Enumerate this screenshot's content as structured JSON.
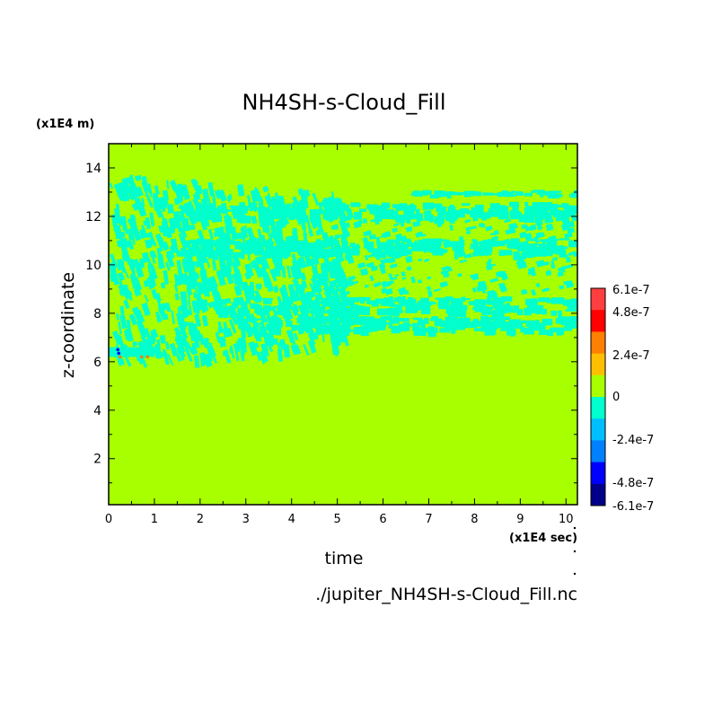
{
  "chart_data": {
    "type": "heatmap",
    "title": "NH4SH-s-Cloud_Fill",
    "xlabel": "time",
    "ylabel": "z-coordinate",
    "x_unit": "(x1E4 sec)",
    "y_unit": "(x1E4 m)",
    "xlim": [
      0,
      10.25
    ],
    "ylim": [
      0.1,
      15.0
    ],
    "x_ticks": [
      "0",
      "1",
      "2",
      "3",
      "4",
      "5",
      "6",
      "7",
      "8",
      "9",
      "10"
    ],
    "y_ticks": [
      "2",
      "4",
      "6",
      "8",
      "10",
      "12",
      "14"
    ],
    "background_value": 0,
    "cloud_region_y": [
      6.2,
      13.8
    ],
    "cloud_layers_late": [
      7.6,
      8.4,
      10.8,
      12.3,
      13.0
    ],
    "colorbar": {
      "labels": [
        "6.1e-7",
        "4.8e-7",
        "2.4e-7",
        "0",
        "-2.4e-7",
        "-4.8e-7",
        "-6.1e-7"
      ],
      "colors": [
        "#ff3f3f",
        "#ff0000",
        "#ff7f00",
        "#ffbf00",
        "#a8ff00",
        "#00ffcc",
        "#00bfff",
        "#007fff",
        "#0000ff",
        "#00008b"
      ]
    }
  },
  "footer": {
    "filename": "./jupiter_NH4SH-s-Cloud_Fill.nc"
  },
  "colors": {
    "background_field": "#a8ff00",
    "negative_small": "#00ffcc",
    "positive_spot": "#ff7f00",
    "negative_spot": "#0000ff"
  }
}
